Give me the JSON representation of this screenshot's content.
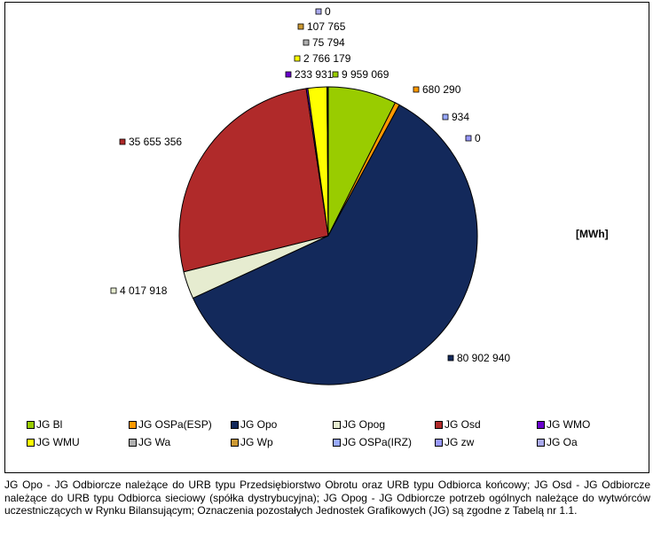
{
  "chart_data": {
    "type": "pie",
    "unit_label": "[MWh]",
    "slices": [
      {
        "name": "JG Bl",
        "value": 9959069,
        "label": "9 959 069",
        "color": "#99cc00"
      },
      {
        "name": "JG OSPa(ESP)",
        "value": 680290,
        "label": "680 290",
        "color": "#ff9900"
      },
      {
        "name": "JG Opo",
        "value": 80902940,
        "label": "80 902 940",
        "color": "#13295b"
      },
      {
        "name": "JG Opog",
        "value": 4017918,
        "label": "4 017 918",
        "color": "#e6ecd0"
      },
      {
        "name": "JG Osd",
        "value": 35655356,
        "label": "35 655 356",
        "color": "#b02a2a"
      },
      {
        "name": "JG WMO",
        "value": 233931,
        "label": "233 931",
        "color": "#6a00cc"
      },
      {
        "name": "JG WMU",
        "value": 2766179,
        "label": "2 766 179",
        "color": "#ffff00"
      },
      {
        "name": "JG Wa",
        "value": 75794,
        "label": "75 794",
        "color": "#b0b0b0"
      },
      {
        "name": "JG Wp",
        "value": 107765,
        "label": "107 765",
        "color": "#cc9933"
      },
      {
        "name": "JG OSPa(IRZ)",
        "value": 934,
        "label": "934",
        "color": "#99aaff"
      },
      {
        "name": "JG zw",
        "value": 0,
        "label": "0",
        "color": "#9999ff"
      },
      {
        "name": "JG Oa",
        "value": 0,
        "label": "0",
        "color": "#aaaaee"
      }
    ]
  },
  "caption": "JG Opo - JG Odbiorcze należące do URB typu Przedsiębiorstwo Obrotu oraz URB typu Odbiorca końcowy; JG Osd - JG Odbiorcze należące do URB typu Odbiorca sieciowy (spółka dystrybucyjna); JG Opog - JG Odbiorcze potrzeb ogólnych należące do wytwórców uczestniczących w Rynku Bilansującym; Oznaczenia pozostałych Jednostek Grafikowych (JG) są zgodne z Tabelą nr 1.1."
}
